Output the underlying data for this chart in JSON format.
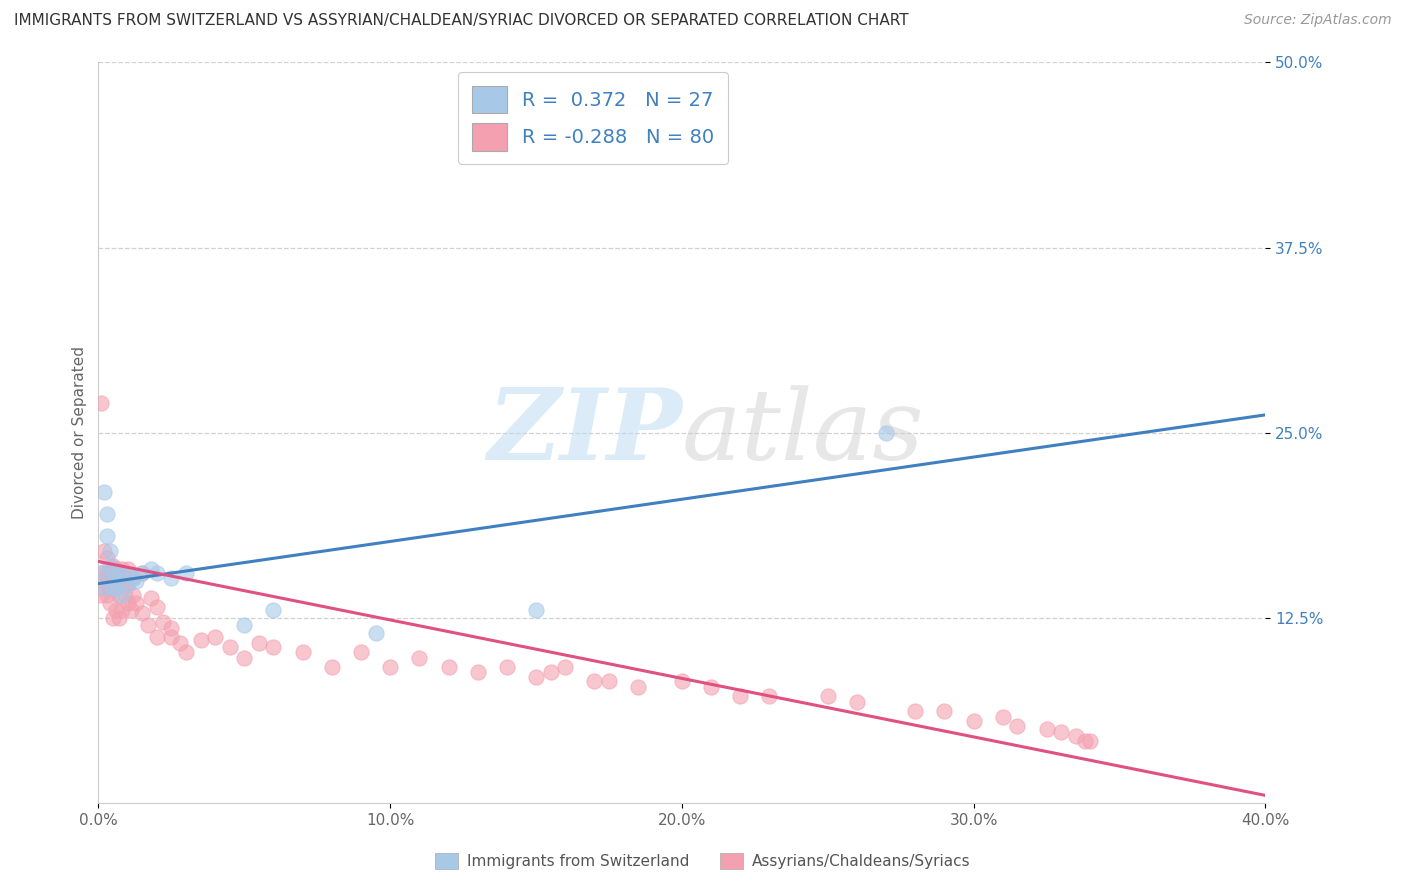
{
  "title": "IMMIGRANTS FROM SWITZERLAND VS ASSYRIAN/CHALDEAN/SYRIAC DIVORCED OR SEPARATED CORRELATION CHART",
  "source": "Source: ZipAtlas.com",
  "xlabel_blue": "Immigrants from Switzerland",
  "xlabel_pink": "Assyrians/Chaldeans/Syriacs",
  "ylabel": "Divorced or Separated",
  "watermark_zip": "ZIP",
  "watermark_atlas": "atlas",
  "xlim": [
    0.0,
    0.4
  ],
  "ylim": [
    0.0,
    0.5
  ],
  "xticks": [
    0.0,
    0.1,
    0.2,
    0.3,
    0.4
  ],
  "yticks": [
    0.125,
    0.25,
    0.375,
    0.5
  ],
  "xtick_labels": [
    "0.0%",
    "10.0%",
    "20.0%",
    "30.0%",
    "40.0%"
  ],
  "ytick_labels": [
    "12.5%",
    "25.0%",
    "37.5%",
    "50.0%"
  ],
  "blue_R": 0.372,
  "blue_N": 27,
  "pink_R": -0.288,
  "pink_N": 80,
  "blue_color": "#a8c8e8",
  "pink_color": "#f4a0b0",
  "blue_line_color": "#4080c0",
  "pink_line_color": "#e05080",
  "blue_scatter_x": [
    0.001,
    0.002,
    0.002,
    0.003,
    0.003,
    0.004,
    0.004,
    0.005,
    0.005,
    0.006,
    0.006,
    0.007,
    0.008,
    0.009,
    0.01,
    0.012,
    0.013,
    0.015,
    0.018,
    0.02,
    0.025,
    0.03,
    0.05,
    0.06,
    0.095,
    0.15,
    0.27
  ],
  "blue_scatter_y": [
    0.155,
    0.145,
    0.21,
    0.195,
    0.18,
    0.16,
    0.17,
    0.145,
    0.155,
    0.15,
    0.145,
    0.155,
    0.14,
    0.155,
    0.148,
    0.152,
    0.15,
    0.155,
    0.158,
    0.155,
    0.152,
    0.155,
    0.12,
    0.13,
    0.115,
    0.13,
    0.25
  ],
  "pink_scatter_x": [
    0.001,
    0.001,
    0.001,
    0.002,
    0.002,
    0.002,
    0.003,
    0.003,
    0.003,
    0.004,
    0.004,
    0.004,
    0.005,
    0.005,
    0.005,
    0.006,
    0.006,
    0.006,
    0.007,
    0.007,
    0.007,
    0.008,
    0.008,
    0.008,
    0.009,
    0.009,
    0.01,
    0.01,
    0.01,
    0.011,
    0.012,
    0.012,
    0.013,
    0.015,
    0.015,
    0.017,
    0.018,
    0.02,
    0.02,
    0.022,
    0.025,
    0.025,
    0.028,
    0.03,
    0.035,
    0.04,
    0.045,
    0.05,
    0.055,
    0.06,
    0.07,
    0.08,
    0.09,
    0.1,
    0.11,
    0.12,
    0.13,
    0.14,
    0.15,
    0.155,
    0.16,
    0.17,
    0.175,
    0.185,
    0.2,
    0.21,
    0.22,
    0.23,
    0.25,
    0.26,
    0.28,
    0.29,
    0.3,
    0.31,
    0.315,
    0.325,
    0.33,
    0.335,
    0.338,
    0.34
  ],
  "pink_scatter_y": [
    0.155,
    0.14,
    0.27,
    0.145,
    0.17,
    0.15,
    0.14,
    0.165,
    0.155,
    0.135,
    0.145,
    0.155,
    0.125,
    0.145,
    0.16,
    0.13,
    0.145,
    0.158,
    0.125,
    0.14,
    0.155,
    0.13,
    0.148,
    0.158,
    0.14,
    0.152,
    0.135,
    0.148,
    0.158,
    0.13,
    0.14,
    0.152,
    0.135,
    0.128,
    0.155,
    0.12,
    0.138,
    0.132,
    0.112,
    0.122,
    0.112,
    0.118,
    0.108,
    0.102,
    0.11,
    0.112,
    0.105,
    0.098,
    0.108,
    0.105,
    0.102,
    0.092,
    0.102,
    0.092,
    0.098,
    0.092,
    0.088,
    0.092,
    0.085,
    0.088,
    0.092,
    0.082,
    0.082,
    0.078,
    0.082,
    0.078,
    0.072,
    0.072,
    0.072,
    0.068,
    0.062,
    0.062,
    0.055,
    0.058,
    0.052,
    0.05,
    0.048,
    0.045,
    0.042,
    0.042
  ],
  "blue_line_y_start": 0.148,
  "blue_line_y_end": 0.262,
  "pink_line_y_start": 0.163,
  "pink_line_y_end": 0.005,
  "grid_color": "#cccccc",
  "background_color": "#ffffff",
  "title_fontsize": 11,
  "axis_label_fontsize": 11,
  "tick_fontsize": 11,
  "legend_fontsize": 14,
  "source_fontsize": 10
}
